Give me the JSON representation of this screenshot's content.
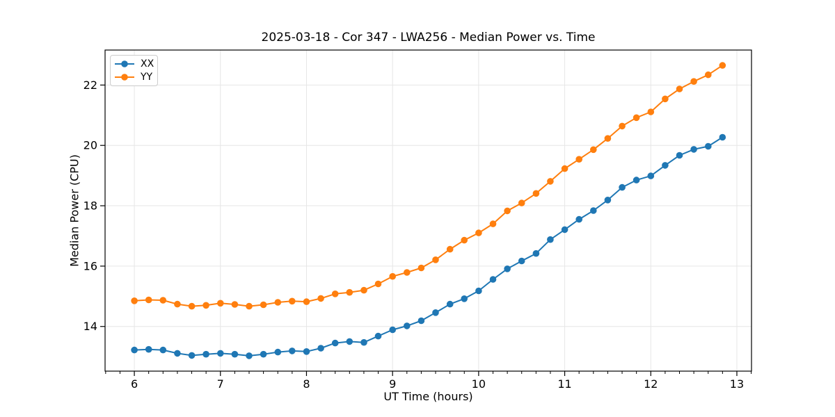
{
  "chart_data": {
    "type": "line",
    "title": "2025-03-18 - Cor 347 - LWA256 - Median Power vs. Time",
    "xlabel": "UT Time (hours)",
    "ylabel": "Median Power (CPU)",
    "x": [
      6.0,
      6.167,
      6.333,
      6.5,
      6.667,
      6.833,
      7.0,
      7.167,
      7.333,
      7.5,
      7.667,
      7.833,
      8.0,
      8.167,
      8.333,
      8.5,
      8.667,
      8.833,
      9.0,
      9.167,
      9.333,
      9.5,
      9.667,
      9.833,
      10.0,
      10.167,
      10.333,
      10.5,
      10.667,
      10.833,
      11.0,
      11.167,
      11.333,
      11.5,
      11.667,
      11.833,
      12.0,
      12.167,
      12.333,
      12.5,
      12.667,
      12.833
    ],
    "series": [
      {
        "name": "XX",
        "color": "#1f77b4",
        "marker": "circle",
        "values": [
          13.22,
          13.24,
          13.22,
          13.11,
          13.04,
          13.08,
          13.11,
          13.08,
          13.03,
          13.08,
          13.15,
          13.19,
          13.17,
          13.28,
          13.45,
          13.5,
          13.47,
          13.68,
          13.89,
          14.02,
          14.19,
          14.46,
          14.74,
          14.92,
          15.18,
          15.56,
          15.91,
          16.17,
          16.42,
          16.88,
          17.21,
          17.55,
          17.84,
          18.19,
          18.61,
          18.85,
          18.99,
          19.34,
          19.67,
          19.87,
          19.97,
          20.27
        ]
      },
      {
        "name": "YY",
        "color": "#ff7f0e",
        "marker": "circle",
        "values": [
          14.85,
          14.88,
          14.87,
          14.74,
          14.67,
          14.7,
          14.77,
          14.73,
          14.67,
          14.72,
          14.8,
          14.84,
          14.82,
          14.93,
          15.08,
          15.13,
          15.2,
          15.41,
          15.66,
          15.79,
          15.94,
          16.21,
          16.56,
          16.86,
          17.1,
          17.4,
          17.83,
          18.09,
          18.41,
          18.81,
          19.23,
          19.54,
          19.86,
          20.23,
          20.64,
          20.92,
          21.11,
          21.54,
          21.87,
          22.12,
          22.34,
          22.65
        ]
      }
    ],
    "xlim": [
      5.66,
      13.17
    ],
    "ylim": [
      12.52,
      23.16
    ],
    "xticks": [
      6,
      7,
      8,
      9,
      10,
      11,
      12,
      13
    ],
    "yticks": [
      14,
      16,
      18,
      20,
      22
    ],
    "x_minor_tick_step": 0.16667,
    "grid": true,
    "legend_position": "upper left",
    "grid_color": "#e6e6e6",
    "axis_color": "#000000",
    "background_color": "#ffffff"
  }
}
